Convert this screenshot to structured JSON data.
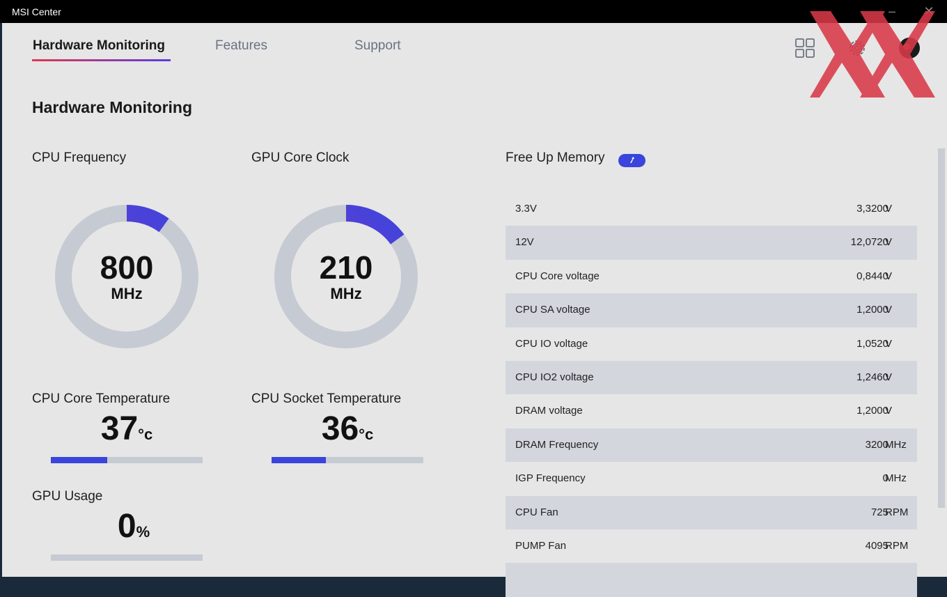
{
  "window": {
    "title": "MSI Center"
  },
  "nav": {
    "tabs": [
      {
        "label": "Hardware Monitoring",
        "active": true
      },
      {
        "label": "Features",
        "active": false
      },
      {
        "label": "Support",
        "active": false
      }
    ],
    "icons": [
      "grid-icon",
      "gear-icon",
      "avatar"
    ]
  },
  "page": {
    "title": "Hardware Monitoring"
  },
  "gauges": [
    {
      "label": "CPU Frequency",
      "value": "800",
      "unit": "MHz",
      "fill_fraction": 0.1
    },
    {
      "label": "GPU Core Clock",
      "value": "210",
      "unit": "MHz",
      "fill_fraction": 0.15
    }
  ],
  "temps": [
    {
      "label": "CPU Core Temperature",
      "value": "37",
      "unit": "°c",
      "bar_fraction": 0.37
    },
    {
      "label": "CPU Socket Temperature",
      "value": "36",
      "unit": "°c",
      "bar_fraction": 0.36
    }
  ],
  "gpu_usage": {
    "label": "GPU Usage",
    "value": "0",
    "unit": "%",
    "bar_fraction": 0
  },
  "memory": {
    "label": "Free Up Memory"
  },
  "readings": [
    {
      "name": "3.3V",
      "value": "3,3200",
      "unit": "V"
    },
    {
      "name": "12V",
      "value": "12,0720",
      "unit": "V"
    },
    {
      "name": "CPU Core voltage",
      "value": "0,8440",
      "unit": "V"
    },
    {
      "name": "CPU SA voltage",
      "value": "1,2000",
      "unit": "V"
    },
    {
      "name": "CPU IO voltage",
      "value": "1,0520",
      "unit": "V"
    },
    {
      "name": "CPU IO2 voltage",
      "value": "1,2460",
      "unit": "V"
    },
    {
      "name": "DRAM voltage",
      "value": "1,2000",
      "unit": "V"
    },
    {
      "name": "DRAM Frequency",
      "value": "3200",
      "unit": "MHz"
    },
    {
      "name": "IGP Frequency",
      "value": "0",
      "unit": "MHz"
    },
    {
      "name": "CPU Fan",
      "value": "725",
      "unit": "RPM"
    },
    {
      "name": "PUMP Fan",
      "value": "4095",
      "unit": "RPM"
    },
    {
      "name": "",
      "value": "",
      "unit": ""
    }
  ],
  "colors": {
    "accent": "#3a45dc",
    "track": "#c6cad3",
    "gradient_start": "#8a35c8",
    "watermark": "#d93a48"
  }
}
